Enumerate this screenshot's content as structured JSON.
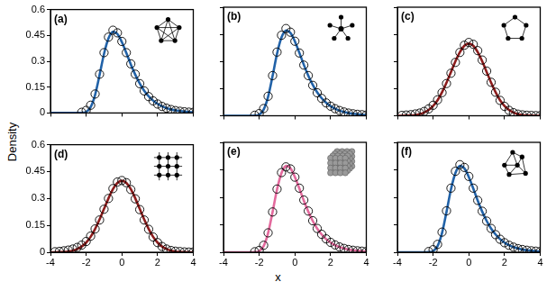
{
  "shared_axes": {
    "xlabel": "x",
    "ylabel": "Density"
  },
  "chart_data": [
    {
      "type": "line",
      "title": "(a)",
      "x": [
        -4,
        -3.75,
        -3.5,
        -3.25,
        -3,
        -2.75,
        -2.5,
        -2.25,
        -2,
        -1.75,
        -1.5,
        -1.25,
        -1,
        -0.75,
        -0.5,
        -0.25,
        0,
        0.25,
        0.5,
        0.75,
        1,
        1.25,
        1.5,
        1.75,
        2,
        2.25,
        2.5,
        2.75,
        3,
        3.25,
        3.5,
        3.75,
        4
      ],
      "series": [
        {
          "type": "line",
          "color": "#2162a8",
          "line_style": "solid",
          "values": [
            0,
            0,
            0,
            0,
            0,
            0,
            0,
            0.001,
            0.006,
            0.034,
            0.105,
            0.22,
            0.343,
            0.433,
            0.471,
            0.458,
            0.411,
            0.348,
            0.282,
            0.222,
            0.171,
            0.129,
            0.097,
            0.072,
            0.053,
            0.039,
            0.028,
            0.021,
            0.015,
            0.011,
            0.008,
            0.006,
            0.004
          ]
        },
        {
          "type": "scatter",
          "color": "#000000",
          "marker": "open_circle",
          "values": [
            null,
            null,
            null,
            null,
            null,
            null,
            null,
            0.004,
            0.015,
            0.045,
            0.11,
            0.225,
            0.35,
            0.44,
            0.48,
            0.465,
            0.415,
            0.35,
            0.285,
            0.225,
            0.17,
            0.128,
            0.095,
            0.07,
            0.052,
            0.038,
            0.028,
            0.02,
            0.014,
            0.01,
            0.007,
            0.005,
            0.004
          ]
        }
      ],
      "xlim": [
        -4,
        4
      ],
      "ylim": [
        0,
        0.6
      ],
      "xticks": [
        -4,
        -2,
        0,
        2,
        4
      ],
      "yticks": [
        0,
        0.15,
        0.3,
        0.45,
        0.6
      ],
      "grid": false,
      "tick_labels": "y"
    },
    {
      "type": "line",
      "title": "(b)",
      "x": [
        -4,
        -3.75,
        -3.5,
        -3.25,
        -3,
        -2.75,
        -2.5,
        -2.25,
        -2,
        -1.75,
        -1.5,
        -1.25,
        -1,
        -0.75,
        -0.5,
        -0.25,
        0,
        0.25,
        0.5,
        0.75,
        1,
        1.25,
        1.5,
        1.75,
        2,
        2.25,
        2.5,
        2.75,
        3,
        3.25,
        3.5,
        3.75,
        4
      ],
      "series": [
        {
          "type": "line",
          "color": "#2162a8",
          "line_style": "solid",
          "values": [
            0,
            0,
            0,
            0,
            0,
            0,
            0,
            0.001,
            0.006,
            0.034,
            0.105,
            0.22,
            0.343,
            0.433,
            0.471,
            0.458,
            0.411,
            0.348,
            0.282,
            0.222,
            0.171,
            0.129,
            0.097,
            0.072,
            0.053,
            0.039,
            0.028,
            0.021,
            0.015,
            0.011,
            0.008,
            0.006,
            0.004
          ]
        },
        {
          "type": "scatter",
          "color": "#000000",
          "marker": "open_circle",
          "values": [
            null,
            null,
            null,
            null,
            null,
            null,
            null,
            0.003,
            0.012,
            0.04,
            0.108,
            0.222,
            0.352,
            0.445,
            0.482,
            0.462,
            0.412,
            0.347,
            0.28,
            0.222,
            0.168,
            0.127,
            0.096,
            0.071,
            0.053,
            0.039,
            0.029,
            0.021,
            0.015,
            0.011,
            0.008,
            0.006,
            0.004
          ]
        }
      ],
      "xlim": [
        -4,
        4
      ],
      "ylim": [
        0,
        0.6
      ],
      "xticks": [
        -4,
        -2,
        0,
        2,
        4
      ],
      "yticks": [
        0,
        0.15,
        0.3,
        0.45,
        0.6
      ],
      "grid": false,
      "tick_labels": false
    },
    {
      "type": "line",
      "title": "(c)",
      "x": [
        -4,
        -3.75,
        -3.5,
        -3.25,
        -3,
        -2.75,
        -2.5,
        -2.25,
        -2,
        -1.75,
        -1.5,
        -1.25,
        -1,
        -0.75,
        -0.5,
        -0.25,
        0,
        0.25,
        0.5,
        0.75,
        1,
        1.25,
        1.5,
        1.75,
        2,
        2.25,
        2.5,
        2.75,
        3,
        3.25,
        3.5,
        3.75,
        4
      ],
      "series": [
        {
          "type": "line",
          "color": "#8c1c1c",
          "line_style": "solid",
          "values": [
            0,
            0,
            0.001,
            0.002,
            0.004,
            0.009,
            0.018,
            0.032,
            0.054,
            0.086,
            0.13,
            0.183,
            0.242,
            0.301,
            0.352,
            0.387,
            0.399,
            0.387,
            0.352,
            0.301,
            0.242,
            0.183,
            0.13,
            0.086,
            0.054,
            0.032,
            0.018,
            0.009,
            0.004,
            0.002,
            0.001,
            0,
            0
          ]
        },
        {
          "type": "scatter",
          "color": "#000000",
          "marker": "open_circle",
          "values": [
            null,
            0.002,
            0.004,
            0.006,
            0.01,
            0.015,
            0.024,
            0.038,
            0.058,
            0.088,
            0.128,
            0.178,
            0.235,
            0.295,
            0.35,
            0.39,
            0.405,
            0.395,
            0.36,
            0.308,
            0.247,
            0.185,
            0.13,
            0.085,
            0.052,
            0.03,
            0.017,
            0.009,
            0.005,
            0.003,
            0.002,
            0.001,
            0.001
          ]
        }
      ],
      "xlim": [
        -4,
        4
      ],
      "ylim": [
        0,
        0.6
      ],
      "xticks": [
        -4,
        -2,
        0,
        2,
        4
      ],
      "yticks": [
        0,
        0.15,
        0.3,
        0.45,
        0.6
      ],
      "grid": false,
      "tick_labels": false
    },
    {
      "type": "line",
      "title": "(d)",
      "x": [
        -4,
        -3.75,
        -3.5,
        -3.25,
        -3,
        -2.75,
        -2.5,
        -2.25,
        -2,
        -1.75,
        -1.5,
        -1.25,
        -1,
        -0.75,
        -0.5,
        -0.25,
        0,
        0.25,
        0.5,
        0.75,
        1,
        1.25,
        1.5,
        1.75,
        2,
        2.25,
        2.5,
        2.75,
        3,
        3.25,
        3.5,
        3.75,
        4
      ],
      "series": [
        {
          "type": "line",
          "color": "#8c1c1c",
          "line_style": "solid",
          "values": [
            0,
            0,
            0.001,
            0.002,
            0.004,
            0.009,
            0.018,
            0.032,
            0.054,
            0.086,
            0.13,
            0.183,
            0.242,
            0.301,
            0.352,
            0.387,
            0.399,
            0.387,
            0.352,
            0.301,
            0.242,
            0.183,
            0.13,
            0.086,
            0.054,
            0.032,
            0.018,
            0.009,
            0.004,
            0.002,
            0.001,
            0,
            0
          ]
        },
        {
          "type": "scatter",
          "color": "#000000",
          "marker": "open_circle",
          "values": [
            null,
            0.003,
            0.005,
            0.008,
            0.012,
            0.018,
            0.027,
            0.04,
            0.06,
            0.09,
            0.13,
            0.18,
            0.24,
            0.3,
            0.355,
            0.392,
            0.4,
            0.388,
            0.35,
            0.298,
            0.238,
            0.18,
            0.128,
            0.085,
            0.054,
            0.032,
            0.018,
            0.01,
            0.006,
            0.004,
            0.002,
            0.001,
            0.001
          ]
        }
      ],
      "xlim": [
        -4,
        4
      ],
      "ylim": [
        0,
        0.6
      ],
      "xticks": [
        -4,
        -2,
        0,
        2,
        4
      ],
      "yticks": [
        0,
        0.15,
        0.3,
        0.45,
        0.6
      ],
      "grid": false,
      "tick_labels": true
    },
    {
      "type": "line",
      "title": "(e)",
      "x": [
        -4,
        -3.75,
        -3.5,
        -3.25,
        -3,
        -2.75,
        -2.5,
        -2.25,
        -2,
        -1.75,
        -1.5,
        -1.25,
        -1,
        -0.75,
        -0.5,
        -0.25,
        0,
        0.25,
        0.5,
        0.75,
        1,
        1.25,
        1.5,
        1.75,
        2,
        2.25,
        2.5,
        2.75,
        3,
        3.25,
        3.5,
        3.75,
        4
      ],
      "series": [
        {
          "type": "line",
          "color": "#e36a9d",
          "line_style": "solid",
          "values": [
            0,
            0,
            0,
            0,
            0,
            0,
            0,
            0.001,
            0.006,
            0.034,
            0.105,
            0.22,
            0.343,
            0.433,
            0.471,
            0.458,
            0.411,
            0.348,
            0.282,
            0.222,
            0.171,
            0.129,
            0.097,
            0.072,
            0.053,
            0.039,
            0.028,
            0.021,
            0.015,
            0.011,
            0.008,
            0.006,
            0.004
          ]
        },
        {
          "type": "scatter",
          "color": "#000000",
          "marker": "open_circle",
          "values": [
            null,
            null,
            null,
            null,
            null,
            null,
            null,
            0.003,
            0.01,
            0.038,
            0.106,
            0.22,
            0.345,
            0.435,
            0.466,
            0.455,
            0.41,
            0.35,
            0.285,
            0.225,
            0.172,
            0.13,
            0.098,
            0.073,
            0.054,
            0.04,
            0.029,
            0.021,
            0.015,
            0.011,
            0.008,
            0.006,
            0.004
          ]
        }
      ],
      "xlim": [
        -4,
        4
      ],
      "ylim": [
        0,
        0.6
      ],
      "xticks": [
        -4,
        -2,
        0,
        2,
        4
      ],
      "yticks": [
        0,
        0.15,
        0.3,
        0.45,
        0.6
      ],
      "grid": false,
      "tick_labels": "x"
    },
    {
      "type": "line",
      "title": "(f)",
      "x": [
        -4,
        -3.75,
        -3.5,
        -3.25,
        -3,
        -2.75,
        -2.5,
        -2.25,
        -2,
        -1.75,
        -1.5,
        -1.25,
        -1,
        -0.75,
        -0.5,
        -0.25,
        0,
        0.25,
        0.5,
        0.75,
        1,
        1.25,
        1.5,
        1.75,
        2,
        2.25,
        2.5,
        2.75,
        3,
        3.25,
        3.5,
        3.75,
        4
      ],
      "series": [
        {
          "type": "line",
          "color": "#2162a8",
          "line_style": "solid",
          "values": [
            0,
            0,
            0,
            0,
            0,
            0,
            0,
            0.001,
            0.006,
            0.034,
            0.105,
            0.22,
            0.343,
            0.433,
            0.471,
            0.458,
            0.411,
            0.348,
            0.282,
            0.222,
            0.171,
            0.129,
            0.097,
            0.072,
            0.053,
            0.039,
            0.028,
            0.021,
            0.015,
            0.011,
            0.008,
            0.006,
            0.004
          ]
        },
        {
          "type": "scatter",
          "color": "#000000",
          "marker": "open_circle",
          "values": [
            null,
            null,
            null,
            null,
            null,
            null,
            null,
            0.004,
            0.014,
            0.043,
            0.11,
            0.226,
            0.35,
            0.442,
            0.478,
            0.463,
            0.414,
            0.35,
            0.283,
            0.224,
            0.17,
            0.13,
            0.096,
            0.071,
            0.052,
            0.038,
            0.028,
            0.02,
            0.015,
            0.011,
            0.008,
            0.006,
            0.004
          ]
        }
      ],
      "xlim": [
        -4,
        4
      ],
      "ylim": [
        0,
        0.6
      ],
      "xticks": [
        -4,
        -2,
        0,
        2,
        4
      ],
      "yticks": [
        0,
        0.15,
        0.3,
        0.45,
        0.6
      ],
      "grid": false,
      "tick_labels": "x"
    }
  ]
}
